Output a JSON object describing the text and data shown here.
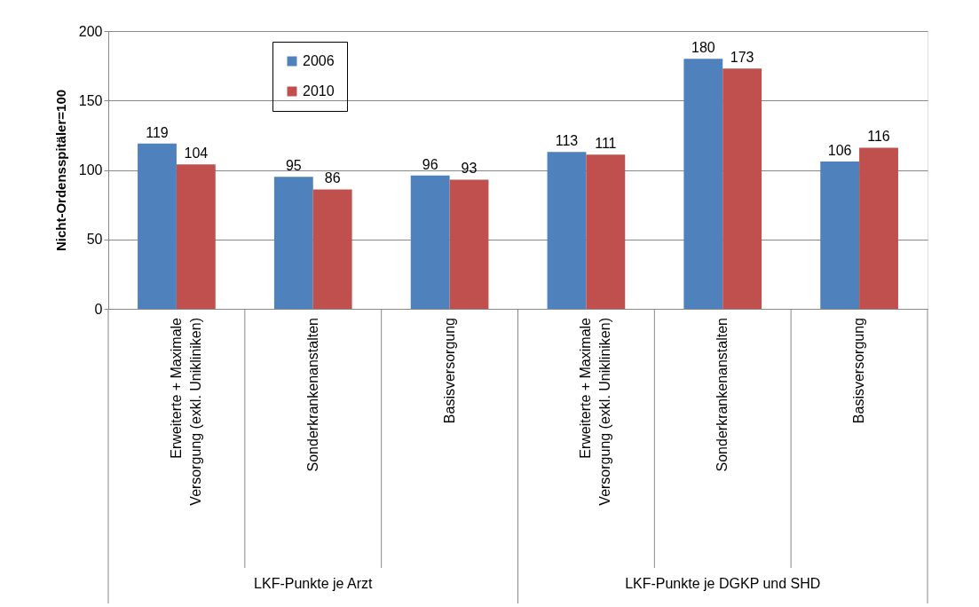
{
  "chart_data": {
    "type": "bar",
    "ylabel": "Nicht-Ordensspitäler=100",
    "categories": [
      "Erweiterte + Maximale\nVersorgung (exkl. Unikliniken)",
      "Sonderkrankenanstalten",
      "Basisversorgung",
      "Erweiterte + Maximale\nVersorgung (exkl. Unikliniken)",
      "Sonderkrankenanstalten",
      "Basisversorgung"
    ],
    "series": [
      {
        "name": "2006",
        "color": "#4f81bd",
        "values": [
          119,
          95,
          96,
          113,
          180,
          106
        ]
      },
      {
        "name": "2010",
        "color": "#c0504d",
        "values": [
          104,
          86,
          93,
          111,
          173,
          116
        ]
      }
    ],
    "ylim": [
      0,
      200
    ],
    "yticks": [
      0,
      50,
      100,
      150,
      200
    ],
    "grid": "y",
    "legend": "top left",
    "data_labels": true,
    "annotations": [
      "LKF-Punkte je Arzt",
      "LKF-Punkte je DGKP und SHD"
    ]
  }
}
